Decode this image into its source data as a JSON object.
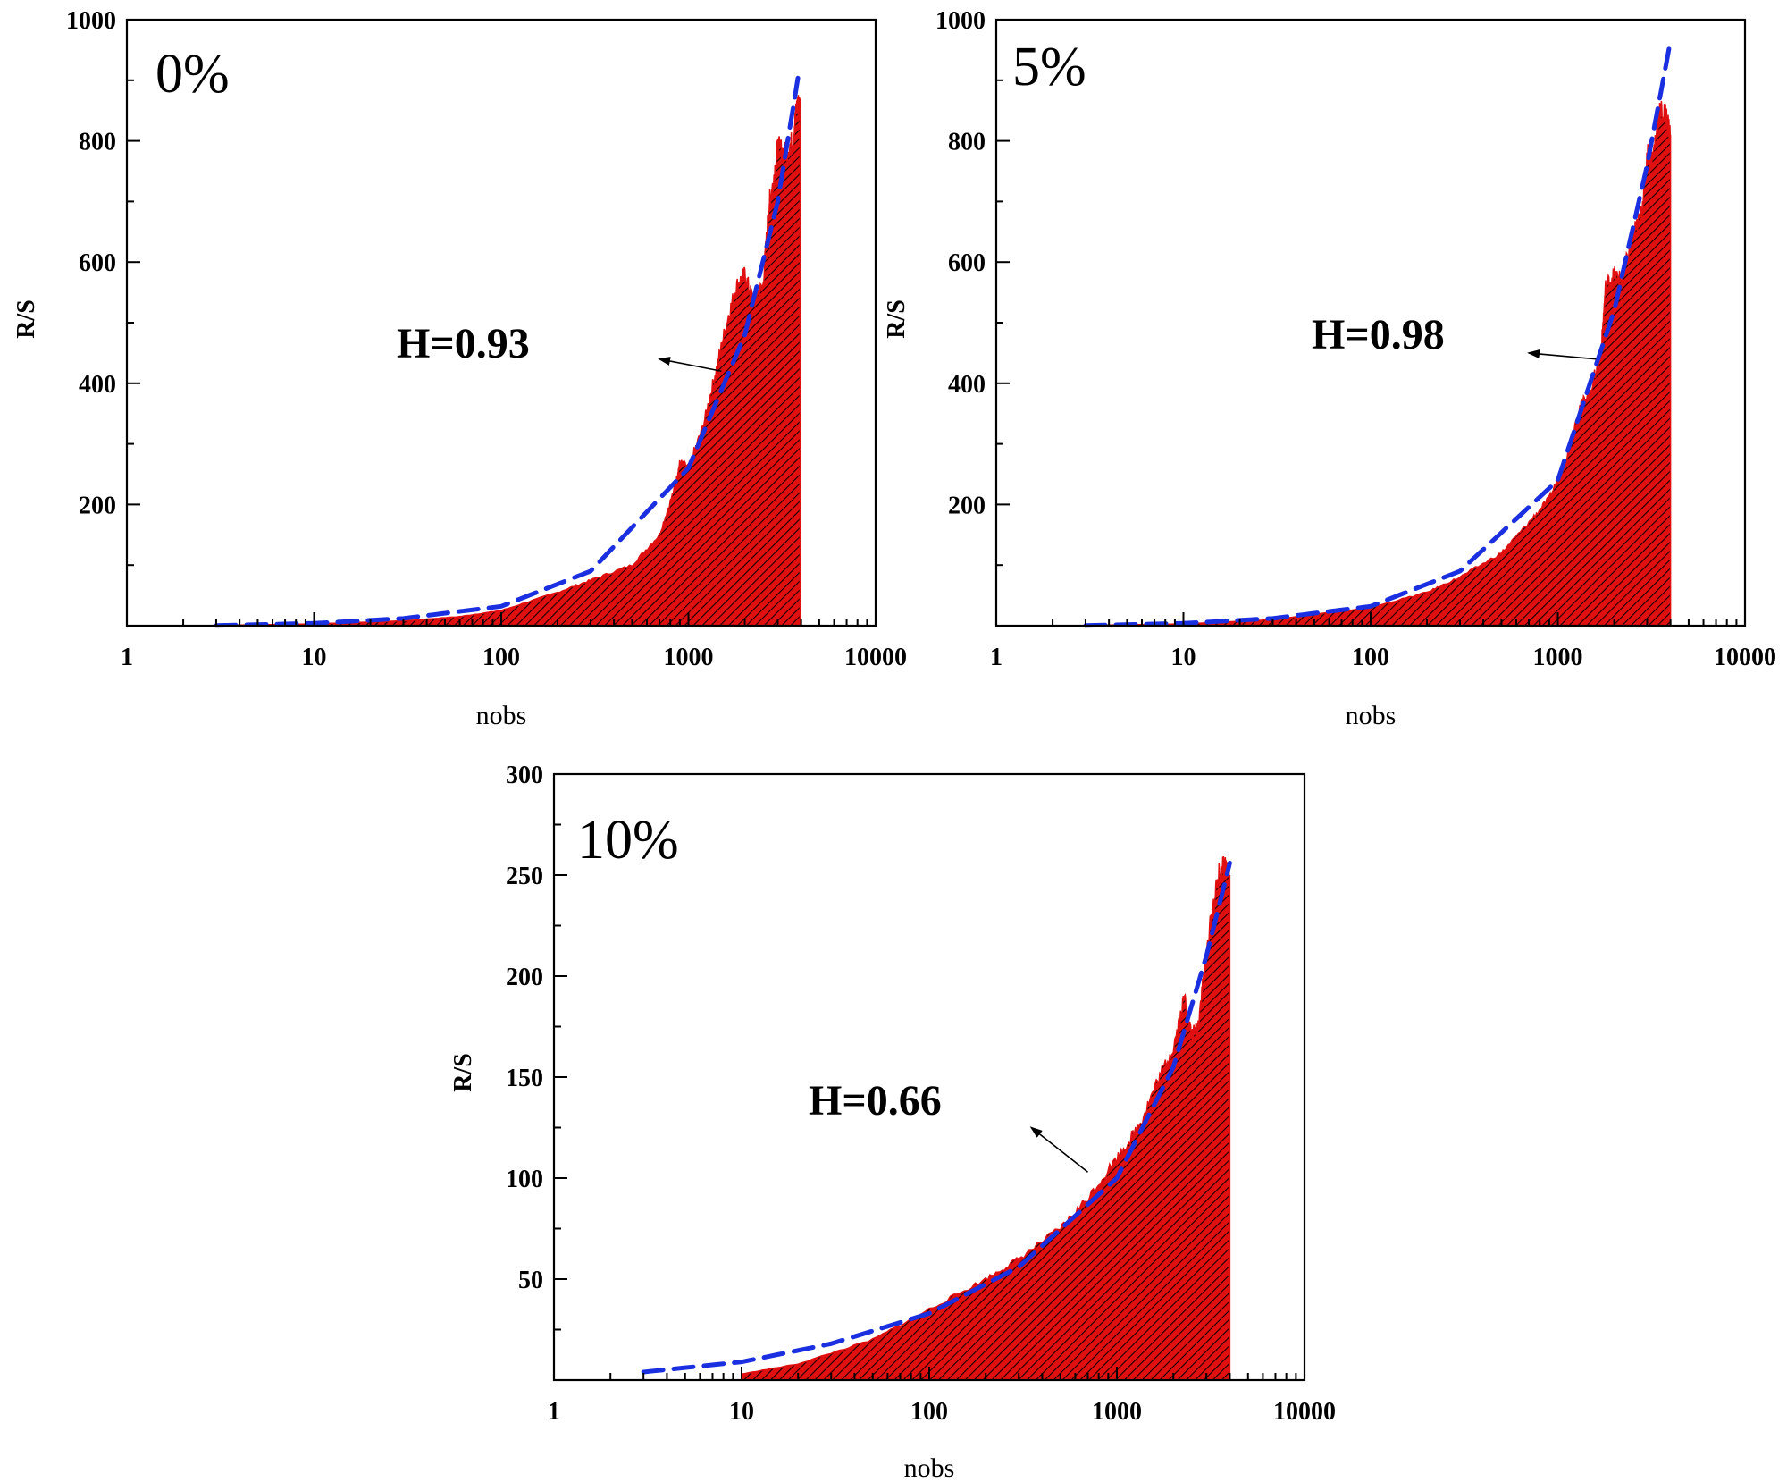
{
  "figure": {
    "colors": {
      "fill": "#e01010",
      "hatch": "#1a0000",
      "fit": "#1a2fe0",
      "axis": "#000000"
    },
    "icons": [
      "arrow-icon"
    ]
  },
  "chart_data": [
    {
      "type": "area",
      "panel_label": "0%",
      "hurst_label": "H=0.93",
      "xlabel": "nobs",
      "ylabel": "R/S",
      "xscale": "log",
      "xlim": [
        1,
        10000
      ],
      "ylim": [
        0,
        1000
      ],
      "xticks": [
        1,
        10,
        100,
        1000,
        10000
      ],
      "xtick_labels": [
        "1",
        "10",
        "100",
        "1000",
        "10000"
      ],
      "yticks": [
        200,
        400,
        600,
        800,
        1000
      ],
      "ytick_labels": [
        "200",
        "400",
        "600",
        "800",
        "1000"
      ],
      "series": [
        {
          "name": "R/S",
          "x": [
            3,
            10,
            30,
            60,
            100,
            200,
            300,
            500,
            700,
            850,
            900,
            1000,
            1200,
            1400,
            1600,
            1800,
            2000,
            2200,
            2500,
            2700,
            2800,
            3000,
            3300,
            3600,
            3800,
            3950
          ],
          "y": [
            0.5,
            3,
            8,
            15,
            25,
            55,
            75,
            100,
            150,
            230,
            270,
            260,
            330,
            420,
            500,
            560,
            580,
            540,
            560,
            700,
            720,
            790,
            780,
            800,
            860,
            860
          ]
        },
        {
          "name": "fit",
          "x": [
            3,
            10,
            30,
            100,
            300,
            1000,
            2000,
            3000,
            3900
          ],
          "y": [
            0.3,
            4,
            12,
            32,
            90,
            260,
            480,
            700,
            915
          ]
        }
      ],
      "annotation": {
        "text": "H=0.93",
        "arrow_from": [
          1500,
          420
        ],
        "arrow_to": [
          700,
          440
        ]
      }
    },
    {
      "type": "area",
      "panel_label": "5%",
      "hurst_label": "H=0.98",
      "xlabel": "nobs",
      "ylabel": "R/S",
      "xscale": "log",
      "xlim": [
        1,
        10000
      ],
      "ylim": [
        0,
        1000
      ],
      "xticks": [
        1,
        10,
        100,
        1000,
        10000
      ],
      "xtick_labels": [
        "1",
        "10",
        "100",
        "1000",
        "10000"
      ],
      "yticks": [
        200,
        400,
        600,
        800,
        1000
      ],
      "ytick_labels": [
        "200",
        "400",
        "600",
        "800",
        "1000"
      ],
      "series": [
        {
          "name": "R/S",
          "x": [
            3,
            10,
            30,
            100,
            200,
            300,
            500,
            700,
            900,
            1100,
            1300,
            1500,
            1700,
            1800,
            2000,
            2200,
            2500,
            2800,
            3000,
            3200,
            3500,
            3800,
            4000
          ],
          "y": [
            0.5,
            3,
            10,
            30,
            55,
            80,
            120,
            170,
            210,
            270,
            360,
            390,
            450,
            560,
            580,
            570,
            640,
            680,
            780,
            770,
            850,
            840,
            810
          ]
        },
        {
          "name": "fit",
          "x": [
            3,
            10,
            30,
            100,
            300,
            1000,
            2000,
            3000,
            4000
          ],
          "y": [
            0.3,
            4,
            12,
            32,
            90,
            240,
            520,
            760,
            965
          ]
        }
      ],
      "annotation": {
        "text": "H=0.98",
        "arrow_from": [
          1600,
          440
        ],
        "arrow_to": [
          700,
          450
        ]
      }
    },
    {
      "type": "area",
      "panel_label": "10%",
      "hurst_label": "H=0.66",
      "xlabel": "nobs",
      "ylabel": "R/S",
      "xscale": "log",
      "xlim": [
        1,
        10000
      ],
      "ylim": [
        0,
        300
      ],
      "xticks": [
        1,
        10,
        100,
        1000,
        10000
      ],
      "xtick_labels": [
        "1",
        "10",
        "100",
        "1000",
        "10000"
      ],
      "yticks": [
        50,
        100,
        150,
        200,
        250,
        300
      ],
      "ytick_labels": [
        "50",
        "100",
        "150",
        "200",
        "250",
        "300"
      ],
      "series": [
        {
          "name": "R/S",
          "x": [
            10,
            20,
            50,
            100,
            200,
            300,
            500,
            700,
            1000,
            1300,
            1600,
            2000,
            2300,
            2500,
            2700,
            2900,
            3200,
            3500,
            3800,
            4000
          ],
          "y": [
            3,
            8,
            20,
            35,
            50,
            60,
            75,
            90,
            110,
            125,
            145,
            165,
            190,
            170,
            175,
            200,
            230,
            250,
            255,
            250
          ]
        },
        {
          "name": "fit",
          "x": [
            3,
            10,
            30,
            100,
            300,
            1000,
            2000,
            3000,
            4000
          ],
          "y": [
            4,
            9,
            18,
            33,
            56,
            100,
            155,
            210,
            256
          ]
        }
      ],
      "annotation": {
        "text": "H=0.66",
        "arrow_from": [
          700,
          103
        ],
        "arrow_to": [
          350,
          125
        ]
      }
    }
  ]
}
